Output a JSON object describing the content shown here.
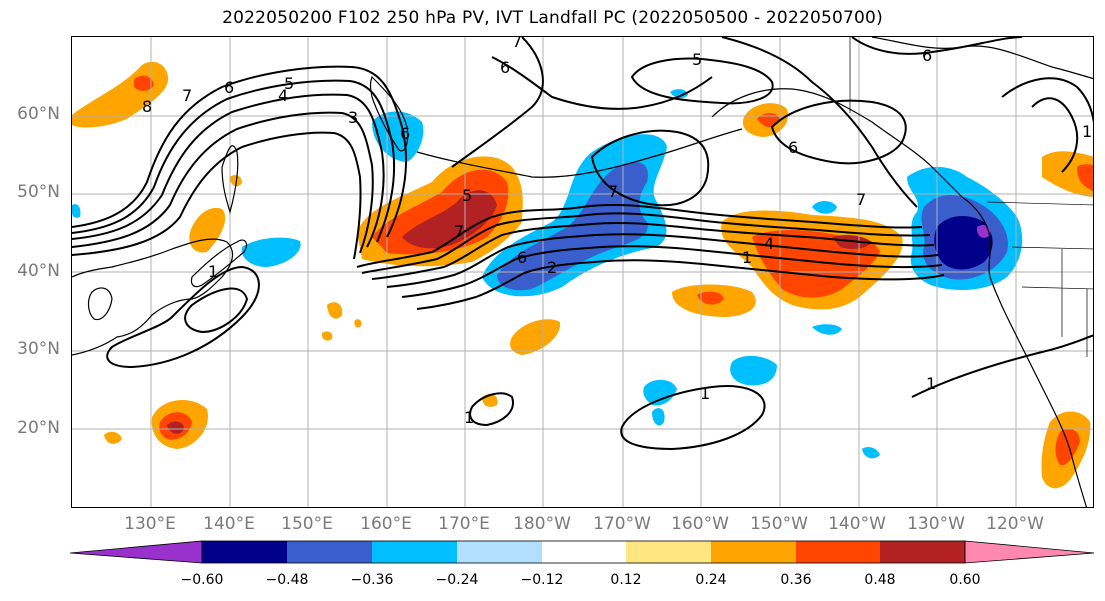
{
  "title": "2022050200 F102 250 hPa PV, IVT Landfall PC (2022050500 - 2022050700)",
  "lat_labels": [
    "60°N",
    "50°N",
    "40°N",
    "30°N",
    "20°N"
  ],
  "lon_labels": [
    "130°E",
    "140°E",
    "150°E",
    "160°E",
    "170°E",
    "180°W",
    "170°W",
    "160°W",
    "150°W",
    "140°W",
    "130°W",
    "120°W"
  ],
  "colorbar": {
    "tick_labels": [
      "−0.60",
      "−0.48",
      "−0.36",
      "−0.24",
      "−0.12",
      "0.12",
      "0.24",
      "0.36",
      "0.48",
      "0.60"
    ],
    "colors": [
      "#9932cc",
      "#00008b",
      "#3a5fcd",
      "#00bfff",
      "#b2dfff",
      "#ffffff",
      "#ffe680",
      "#ffa500",
      "#ff4500",
      "#b22222",
      "#ff88b0"
    ]
  },
  "contour_labels": [
    "8",
    "7",
    "6",
    "5",
    "4",
    "3",
    "6",
    "5",
    "6",
    "7",
    "5",
    "7",
    "6",
    "2",
    "7",
    "6",
    "1",
    "4",
    "7",
    "1",
    "1",
    "1",
    "6",
    "1",
    "1"
  ],
  "colors": {
    "grid": "#b0b0b0",
    "axis_label": "#7a7a7a"
  }
}
